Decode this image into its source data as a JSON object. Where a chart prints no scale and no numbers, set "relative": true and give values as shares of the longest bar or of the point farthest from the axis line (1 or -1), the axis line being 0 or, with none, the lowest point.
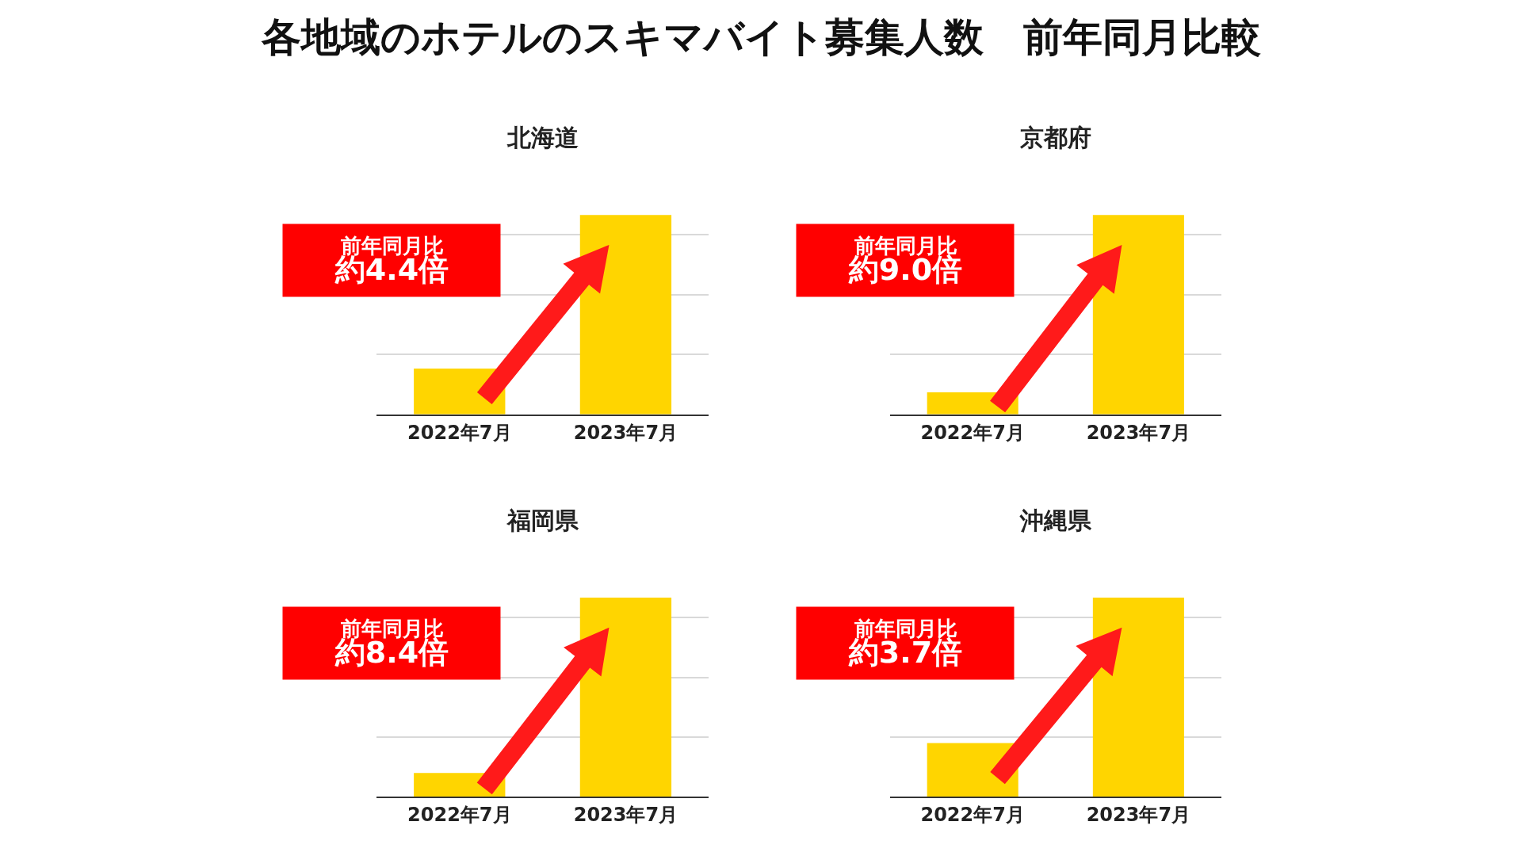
{
  "chart_data": [
    {
      "type": "bar",
      "title": "北海道",
      "categories": [
        "2022年7月",
        "2023年7月"
      ],
      "values": [
        0.23,
        1
      ],
      "color": "#ffd500",
      "relative": true,
      "grid": "y",
      "annotations": [
        "各地域のホテルのスキマバイト募集人数　前年同月比較",
        "前年同月比",
        "約4.4倍"
      ]
    },
    {
      "type": "bar",
      "title": "京都府",
      "categories": [
        "2022年7月",
        "2023年7月"
      ],
      "values": [
        0.11,
        1
      ],
      "color": "#ffd500",
      "relative": true,
      "grid": "y",
      "annotations": [
        "前年同月比",
        "約9.0倍"
      ]
    },
    {
      "type": "bar",
      "title": "福岡県",
      "categories": [
        "2022年7月",
        "2023年7月"
      ],
      "values": [
        0.12,
        1
      ],
      "color": "#ffd500",
      "relative": true,
      "grid": "y",
      "annotations": [
        "前年同月比",
        "約8.4倍"
      ]
    },
    {
      "type": "bar",
      "title": "沖縄県",
      "categories": [
        "2022年7月",
        "2023年7月"
      ],
      "values": [
        0.27,
        1
      ],
      "color": "#ffd500",
      "relative": true,
      "grid": "y",
      "annotations": [
        "前年同月比",
        "約3.7倍"
      ]
    }
  ]
}
